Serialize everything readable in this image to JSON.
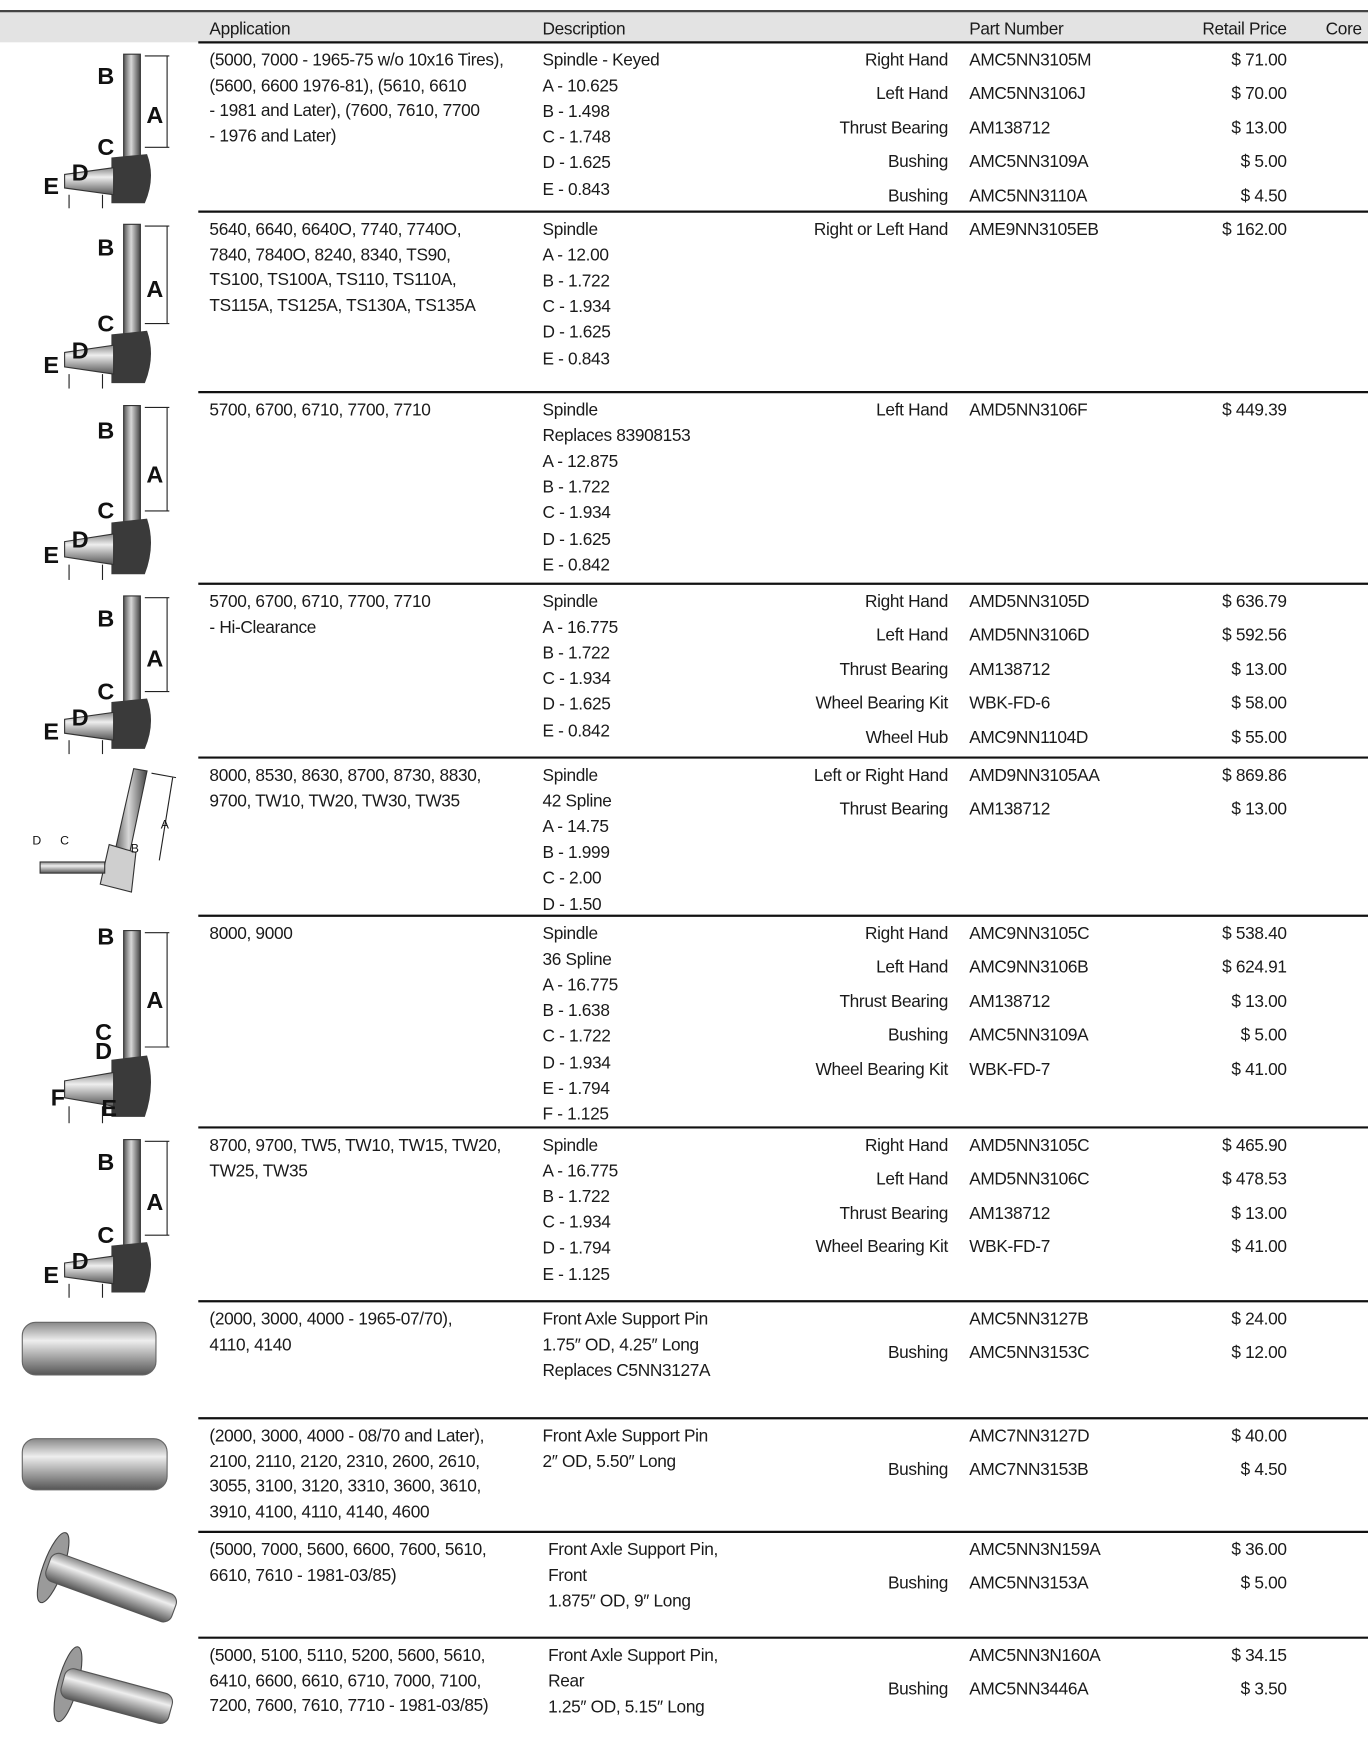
{
  "header": {
    "application": "Application",
    "description": "Description",
    "part_number": "Part Number",
    "retail_price": "Retail Price",
    "core": "Core"
  },
  "rows": [
    {
      "image_labels": [
        "B",
        "A",
        "C",
        "D",
        "E"
      ],
      "application": [
        "(5000, 7000 - 1965-75 w/o 10x16 Tires),",
        "(5600, 6600 1976-81), (5610, 6610",
        "- 1981 and Later), (7600, 7610, 7700",
        " - 1976 and Later)"
      ],
      "description": [
        "Spindle - Keyed",
        "A - 10.625",
        "B - 1.498",
        "C - 1.748",
        "D - 1.625",
        "E - 0.843"
      ],
      "parts": [
        {
          "type": "Right Hand",
          "number": "AMC5NN3105M",
          "price": "$ 71.00"
        },
        {
          "type": "Left Hand",
          "number": "AMC5NN3106J",
          "price": "$ 70.00"
        },
        {
          "type": "Thrust Bearing",
          "number": "AM138712",
          "price": "$ 13.00"
        },
        {
          "type": "Bushing",
          "number": "AMC5NN3109A",
          "price": "$ 5.00"
        },
        {
          "type": "Bushing",
          "number": "AMC5NN3110A",
          "price": "$ 4.50"
        }
      ]
    },
    {
      "image_labels": [
        "B",
        "A",
        "C",
        "D",
        "E"
      ],
      "application": [
        "5640, 6640, 6640O, 7740, 7740O,",
        "7840, 7840O, 8240, 8340, TS90,",
        "TS100, TS100A, TS110, TS110A,",
        "TS115A, TS125A, TS130A, TS135A"
      ],
      "description": [
        "Spindle",
        "A - 12.00",
        "B - 1.722",
        "C - 1.934",
        "D - 1.625",
        "E - 0.843"
      ],
      "parts": [
        {
          "type": "Right or Left Hand",
          "number": "AME9NN3105EB",
          "price": "$ 162.00"
        }
      ]
    },
    {
      "image_labels": [
        "B",
        "A",
        "C",
        "D",
        "E"
      ],
      "application": [
        "5700, 6700, 6710, 7700, 7710"
      ],
      "description": [
        "Spindle",
        "Replaces 83908153",
        "A - 12.875",
        "B - 1.722",
        "C - 1.934",
        "D - 1.625",
        "E - 0.842"
      ],
      "parts": [
        {
          "type": "Left Hand",
          "number": "AMD5NN3106F",
          "price": "$ 449.39"
        }
      ]
    },
    {
      "image_labels": [
        "B",
        "A",
        "C",
        "D",
        "E"
      ],
      "application": [
        "5700, 6700, 6710, 7700, 7710",
        "- Hi-Clearance"
      ],
      "description": [
        "Spindle",
        "A - 16.775",
        "B - 1.722",
        "C - 1.934",
        "D - 1.625",
        "E - 0.842"
      ],
      "parts": [
        {
          "type": "Right Hand",
          "number": "AMD5NN3105D",
          "price": "$ 636.79"
        },
        {
          "type": "Left Hand",
          "number": "AMD5NN3106D",
          "price": "$ 592.56"
        },
        {
          "type": "Thrust Bearing",
          "number": "AM138712",
          "price": "$ 13.00"
        },
        {
          "type": "Wheel Bearing Kit",
          "number": "WBK-FD-6",
          "price": "$ 58.00"
        },
        {
          "type": "Wheel Hub",
          "number": "AMC9NN1104D",
          "price": "$ 55.00"
        }
      ]
    },
    {
      "image_labels": [
        "D",
        "C",
        "B",
        "A"
      ],
      "application": [
        "8000, 8530, 8630, 8700, 8730, 8830,",
        "9700, TW10, TW20, TW30, TW35"
      ],
      "description": [
        "Spindle",
        "42 Spline",
        "A - 14.75",
        "B - 1.999",
        "C - 2.00",
        "D - 1.50"
      ],
      "parts": [
        {
          "type": "Left or Right Hand",
          "number": "AMD9NN3105AA",
          "price": "$ 869.86"
        },
        {
          "type": "Thrust Bearing",
          "number": "AM138712",
          "price": "$ 13.00"
        }
      ]
    },
    {
      "image_labels": [
        "B",
        "A",
        "C",
        "D",
        "F",
        "E"
      ],
      "application": [
        "8000, 9000"
      ],
      "description": [
        "Spindle",
        "36 Spline",
        "A - 16.775",
        "B - 1.638",
        "C - 1.722",
        "D - 1.934",
        "E - 1.794",
        "F - 1.125"
      ],
      "parts": [
        {
          "type": "Right Hand",
          "number": "AMC9NN3105C",
          "price": "$ 538.40"
        },
        {
          "type": "Left Hand",
          "number": "AMC9NN3106B",
          "price": "$ 624.91"
        },
        {
          "type": "Thrust Bearing",
          "number": "AM138712",
          "price": "$ 13.00"
        },
        {
          "type": "Bushing",
          "number": "AMC5NN3109A",
          "price": "$ 5.00"
        },
        {
          "type": "Wheel Bearing Kit",
          "number": "WBK-FD-7",
          "price": "$ 41.00"
        }
      ]
    },
    {
      "image_labels": [
        "B",
        "A",
        "C",
        "D",
        "E"
      ],
      "application": [
        "8700, 9700, TW5, TW10, TW15, TW20,",
        "TW25, TW35"
      ],
      "description": [
        "Spindle",
        "A - 16.775",
        "B - 1.722",
        "C - 1.934",
        "D - 1.794",
        "E - 1.125"
      ],
      "parts": [
        {
          "type": "Right Hand",
          "number": "AMD5NN3105C",
          "price": "$ 465.90"
        },
        {
          "type": "Left Hand",
          "number": "AMD5NN3106C",
          "price": "$ 478.53"
        },
        {
          "type": "Thrust Bearing",
          "number": "AM138712",
          "price": "$ 13.00"
        },
        {
          "type": "Wheel Bearing Kit",
          "number": "WBK-FD-7",
          "price": "$ 41.00"
        }
      ]
    },
    {
      "application": [
        "(2000, 3000, 4000 - 1965-07/70),",
        "4110, 4140"
      ],
      "description": [
        "Front Axle Support Pin",
        "1.75″ OD, 4.25″ Long",
        "Replaces C5NN3127A"
      ],
      "parts": [
        {
          "number": "AMC5NN3127B",
          "price": "$ 24.00"
        },
        {
          "type": "Bushing",
          "number": "AMC5NN3153C",
          "price": "$ 12.00"
        }
      ]
    },
    {
      "application": [
        "(2000, 3000, 4000 - 08/70 and Later),",
        "2100, 2110, 2120, 2310, 2600, 2610,",
        "3055, 3100, 3120, 3310, 3600, 3610,",
        "3910, 4100, 4110, 4140, 4600"
      ],
      "description": [
        "Front Axle Support Pin",
        "2″ OD, 5.50″ Long"
      ],
      "parts": [
        {
          "number": "AMC7NN3127D",
          "price": "$ 40.00"
        },
        {
          "type": "Bushing",
          "number": "AMC7NN3153B",
          "price": "$ 4.50"
        }
      ]
    },
    {
      "application": [
        "(5000, 7000, 5600, 6600, 7600, 5610,",
        "6610, 7610 - 1981-03/85)"
      ],
      "description": [
        "Front Axle Support Pin,",
        "Front",
        "1.875″ OD, 9″ Long"
      ],
      "parts": [
        {
          "number": "AMC5NN3N159A",
          "price": "$ 36.00"
        },
        {
          "type": "Bushing",
          "number": "AMC5NN3153A",
          "price": "$ 5.00"
        }
      ]
    },
    {
      "application": [
        "(5000, 5100, 5110, 5200, 5600, 5610,",
        "6410, 6600, 6610, 6710, 7000, 7100,",
        "7200, 7600, 7610, 7710 - 1981-03/85)"
      ],
      "description": [
        "Front Axle Support Pin,",
        "Rear",
        "1.25″ OD, 5.15″ Long"
      ],
      "parts": [
        {
          "number": "AMC5NN3N160A",
          "price": "$ 34.15"
        },
        {
          "type": "Bushing",
          "number": "AMC5NN3446A",
          "price": "$ 3.50"
        }
      ]
    }
  ]
}
